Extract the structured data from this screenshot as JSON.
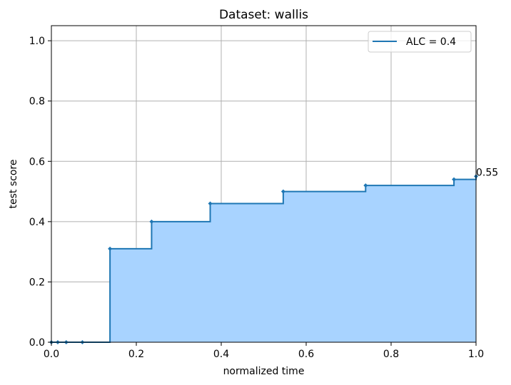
{
  "chart_data": {
    "type": "area",
    "title": "Dataset: wallis",
    "xlabel": "normalized time",
    "ylabel": "test score",
    "xlim": [
      0,
      1
    ],
    "ylim": [
      0,
      1.05
    ],
    "xticks": [
      0.0,
      0.2,
      0.4,
      0.6,
      0.8,
      1.0
    ],
    "xtick_labels": [
      "0.0",
      "0.2",
      "0.4",
      "0.6",
      "0.8",
      "1.0"
    ],
    "yticks": [
      0.0,
      0.2,
      0.4,
      0.6,
      0.8,
      1.0
    ],
    "ytick_labels": [
      "0.0",
      "0.2",
      "0.4",
      "0.6",
      "0.8",
      "1.0"
    ],
    "grid": true,
    "legend_position": "top-right",
    "series": [
      {
        "name": "ALC = 0.4",
        "step": "post",
        "color": "#1f77b4",
        "fill_color": "#a8d3ff",
        "x": [
          0.0,
          0.015,
          0.035,
          0.073,
          0.138,
          0.236,
          0.374,
          0.546,
          0.74,
          0.948,
          1.0
        ],
        "y": [
          0.0,
          0.0,
          0.0,
          0.0,
          0.31,
          0.4,
          0.46,
          0.5,
          0.52,
          0.54,
          0.55
        ]
      }
    ],
    "annotations": [
      {
        "text": "0.55",
        "x": 1.0,
        "y": 0.55
      }
    ]
  }
}
